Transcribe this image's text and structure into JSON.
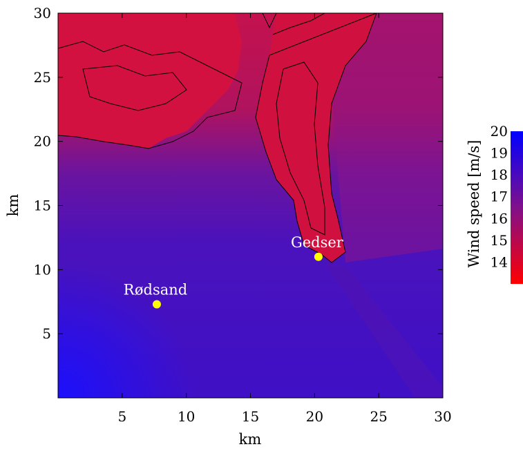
{
  "chart_data": {
    "type": "heatmap",
    "title": "",
    "xlabel": "km",
    "ylabel": "km",
    "xlim": [
      0,
      30
    ],
    "ylim": [
      0,
      30
    ],
    "xticks": [
      5,
      10,
      15,
      20,
      25,
      30
    ],
    "yticks": [
      5,
      10,
      15,
      20,
      25,
      30
    ],
    "colorbar": {
      "label": "Wind speed [m/s]",
      "range": [
        13,
        20
      ],
      "ticks": [
        14,
        15,
        16,
        17,
        18,
        19,
        20
      ],
      "colors": {
        "low": "#ff0000",
        "mid": "#80108a",
        "high": "#0000ff"
      }
    },
    "sites": [
      {
        "name": "Rødsand",
        "x": 7.7,
        "y": 7.3
      },
      {
        "name": "Gedser",
        "x": 20.3,
        "y": 11.0
      }
    ],
    "regions": [
      {
        "area": "land in upper left (Lolland)",
        "approx_wind_speed": 14.5
      },
      {
        "area": "Falster / Gedser peninsula",
        "approx_wind_speed": 14.5
      },
      {
        "area": "open sea, lower area",
        "approx_wind_speed": 18.3
      },
      {
        "area": "lower left corner",
        "approx_wind_speed": 19.5
      }
    ],
    "marker_color": "#ffff00"
  }
}
